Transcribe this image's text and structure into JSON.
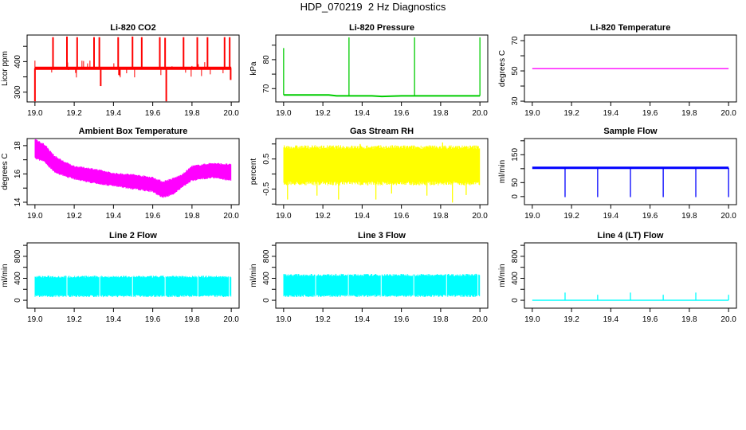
{
  "title": "HDP_070219  2 Hz Diagnostics",
  "chart_data": [
    {
      "type": "line",
      "title": "Li-820 CO2",
      "ylabel": "Licor ppm",
      "xlabel": "",
      "color": "#ff0000",
      "xlim": [
        19.0,
        20.0
      ],
      "ylim": [
        268,
        487
      ],
      "xticks": [
        "19.0",
        "19.2",
        "19.4",
        "19.6",
        "19.8",
        "20.0"
      ],
      "yticks": [
        300,
        350,
        400,
        450
      ],
      "ylabels": [
        "300",
        "400"
      ],
      "grid": false,
      "baseline": 378,
      "spikes": [
        [
          19.0,
          270
        ],
        [
          19.092,
          480
        ],
        [
          19.163,
          482
        ],
        [
          19.215,
          480
        ],
        [
          19.301,
          480
        ],
        [
          19.328,
          480
        ],
        [
          19.335,
          320
        ],
        [
          19.424,
          480
        ],
        [
          19.497,
          482
        ],
        [
          19.544,
          480
        ],
        [
          19.636,
          480
        ],
        [
          19.663,
          478
        ],
        [
          19.669,
          270
        ],
        [
          19.757,
          480
        ],
        [
          19.827,
          480
        ],
        [
          19.879,
          480
        ],
        [
          19.966,
          480
        ],
        [
          19.992,
          480
        ],
        [
          19.997,
          340
        ]
      ]
    },
    {
      "type": "line",
      "title": "Li-820 Pressure",
      "ylabel": "kPa",
      "xlabel": "",
      "color": "#00cc00",
      "xlim": [
        19.0,
        20.0
      ],
      "ylim": [
        65.4,
        88.5
      ],
      "xticks": [
        "19.0",
        "19.2",
        "19.4",
        "19.6",
        "19.8",
        "20.0"
      ],
      "yticks": [
        70,
        75,
        80,
        85
      ],
      "ylabels": [
        "70",
        "80"
      ],
      "grid": false,
      "baseline_points": [
        [
          19.0,
          67.8
        ],
        [
          19.23,
          67.8
        ],
        [
          19.27,
          67.5
        ],
        [
          19.45,
          67.5
        ],
        [
          19.5,
          67.3
        ],
        [
          19.6,
          67.5
        ],
        [
          20.0,
          67.5
        ]
      ],
      "spikes": [
        [
          19.0,
          84
        ],
        [
          19.333,
          87.7
        ],
        [
          19.667,
          87.7
        ],
        [
          20.0,
          87.7
        ]
      ]
    },
    {
      "type": "line",
      "title": "Li-820 Temperature",
      "ylabel": "degrees C",
      "xlabel": "",
      "color": "#ff00ff",
      "xlim": [
        19.0,
        20.0
      ],
      "ylim": [
        29.5,
        73.7
      ],
      "xticks": [
        "19.0",
        "19.2",
        "19.4",
        "19.6",
        "19.8",
        "20.0"
      ],
      "yticks": [
        30,
        40,
        50,
        60,
        70
      ],
      "ylabels": [
        "30",
        "50",
        "70"
      ],
      "grid": false,
      "baseline": 51.5
    },
    {
      "type": "area",
      "title": "Ambient Box Temperature",
      "ylabel": "degrees C",
      "xlabel": "",
      "color": "#ff00ff",
      "xlim": [
        19.0,
        20.0
      ],
      "ylim": [
        13.83,
        18.5
      ],
      "xticks": [
        "19.0",
        "19.2",
        "19.4",
        "19.6",
        "19.8",
        "20.0"
      ],
      "yticks": [
        14,
        15,
        16,
        17,
        18
      ],
      "ylabels": [
        "14",
        "16",
        "18"
      ],
      "grid": false,
      "band": [
        [
          19.0,
          17.2,
          18.4
        ],
        [
          19.05,
          16.9,
          18.0
        ],
        [
          19.1,
          16.2,
          17.2
        ],
        [
          19.15,
          15.9,
          16.8
        ],
        [
          19.2,
          15.7,
          16.5
        ],
        [
          19.3,
          15.4,
          16.3
        ],
        [
          19.4,
          15.2,
          16.0
        ],
        [
          19.5,
          15.0,
          15.9
        ],
        [
          19.6,
          14.8,
          15.7
        ],
        [
          19.65,
          14.4,
          15.4
        ],
        [
          19.7,
          14.6,
          15.6
        ],
        [
          19.75,
          15.1,
          15.9
        ],
        [
          19.8,
          15.6,
          16.5
        ],
        [
          19.9,
          15.8,
          16.7
        ],
        [
          20.0,
          15.6,
          16.6
        ]
      ]
    },
    {
      "type": "area",
      "title": "Gas Stream RH",
      "ylabel": "percent",
      "xlabel": "",
      "color": "#ffff00",
      "xlim": [
        19.0,
        20.0
      ],
      "ylim": [
        -1.02,
        1.18
      ],
      "xticks": [
        "19.0",
        "19.2",
        "19.4",
        "19.6",
        "19.8",
        "20.0"
      ],
      "yticks": [
        -1.0,
        -0.5,
        0.0,
        0.5,
        1.0
      ],
      "ylabels": [
        "-0.5",
        "0.5"
      ],
      "grid": false,
      "band": [
        [
          19.0,
          -0.25,
          0.83
        ],
        [
          20.0,
          -0.25,
          0.83
        ]
      ],
      "spikes": [
        [
          19.02,
          -0.85
        ],
        [
          19.17,
          -0.72
        ],
        [
          19.28,
          -0.85
        ],
        [
          19.47,
          -0.85
        ],
        [
          19.55,
          -0.65
        ],
        [
          19.73,
          -0.72
        ],
        [
          19.81,
          1.05
        ],
        [
          19.86,
          -0.95
        ],
        [
          19.93,
          -0.7
        ],
        [
          19.39,
          1.0
        ]
      ]
    },
    {
      "type": "line",
      "title": "Sample Flow",
      "ylabel": "ml/min",
      "xlabel": "",
      "color": "#0000ff",
      "xlim": [
        19.0,
        20.0
      ],
      "ylim": [
        -29,
        208
      ],
      "xticks": [
        "19.0",
        "19.2",
        "19.4",
        "19.6",
        "19.8",
        "20.0"
      ],
      "yticks": [
        0,
        50,
        100,
        150,
        200
      ],
      "ylabels": [
        "0",
        "50",
        "150"
      ],
      "grid": false,
      "baseline": 103,
      "spikes": [
        [
          19.167,
          -2
        ],
        [
          19.333,
          -2
        ],
        [
          19.5,
          -2
        ],
        [
          19.667,
          -2
        ],
        [
          19.833,
          -2
        ],
        [
          20.0,
          -2
        ]
      ]
    },
    {
      "type": "area",
      "title": "Line 2 Flow",
      "ylabel": "ml/min",
      "xlabel": "",
      "color": "#00ffff",
      "xlim": [
        19.0,
        20.0
      ],
      "ylim": [
        -144,
        1045
      ],
      "xticks": [
        "19.0",
        "19.2",
        "19.4",
        "19.6",
        "19.8",
        "20.0"
      ],
      "yticks": [
        0,
        200,
        400,
        600,
        800,
        1000
      ],
      "ylabels": [
        "0",
        "400",
        "800"
      ],
      "grid": false,
      "band": [
        [
          19.0,
          95,
          410
        ],
        [
          20.0,
          95,
          410
        ]
      ],
      "gaps": [
        19.163,
        19.33,
        19.497,
        19.663,
        19.83,
        19.99
      ]
    },
    {
      "type": "area",
      "title": "Line 3 Flow",
      "ylabel": "ml/min",
      "xlabel": "",
      "color": "#00ffff",
      "xlim": [
        19.0,
        20.0
      ],
      "ylim": [
        -144,
        1045
      ],
      "xticks": [
        "19.0",
        "19.2",
        "19.4",
        "19.6",
        "19.8",
        "20.0"
      ],
      "yticks": [
        0,
        200,
        400,
        600,
        800,
        1000
      ],
      "ylabels": [
        "0",
        "400",
        "800"
      ],
      "grid": false,
      "band": [
        [
          19.0,
          100,
          440
        ],
        [
          20.0,
          100,
          440
        ]
      ],
      "gaps": [
        19.163,
        19.33,
        19.497,
        19.663,
        19.83,
        19.99
      ]
    },
    {
      "type": "line",
      "title": "Line 4 (LT) Flow",
      "ylabel": "ml/min",
      "xlabel": "",
      "color": "#00ffff",
      "xlim": [
        19.0,
        20.0
      ],
      "ylim": [
        -144,
        1045
      ],
      "xticks": [
        "19.0",
        "19.2",
        "19.4",
        "19.6",
        "19.8",
        "20.0"
      ],
      "yticks": [
        0,
        200,
        400,
        600,
        800,
        1000
      ],
      "ylabels": [
        "0",
        "400",
        "800"
      ],
      "grid": false,
      "baseline": 0,
      "spikes": [
        [
          19.167,
          140
        ],
        [
          19.333,
          100
        ],
        [
          19.5,
          140
        ],
        [
          19.667,
          100
        ],
        [
          19.833,
          140
        ],
        [
          20.0,
          100
        ]
      ]
    }
  ]
}
